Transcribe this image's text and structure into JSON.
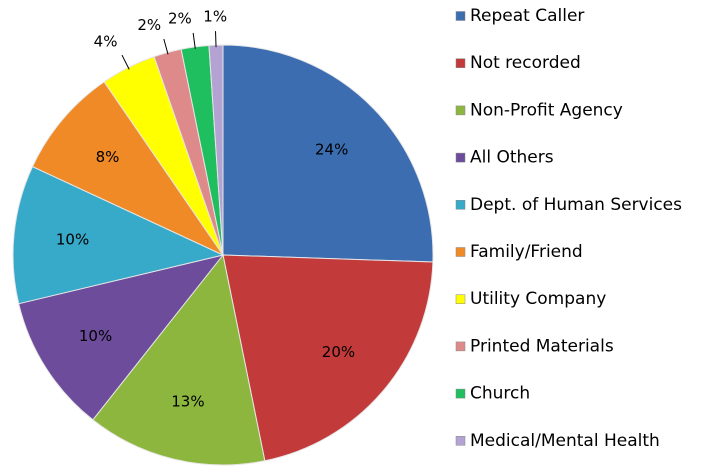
{
  "chart_data": {
    "type": "pie",
    "categories": [
      "Repeat Caller",
      "Not recorded",
      "Non-Profit Agency",
      "All Others",
      "Dept. of Human Services",
      "Family/Friend",
      "Utility Company",
      "Printed Materials",
      "Church",
      "Medical/Mental Health"
    ],
    "values": [
      24,
      20,
      13,
      10,
      10,
      8,
      4,
      2,
      2,
      1
    ],
    "value_labels": [
      "24%",
      "20%",
      "13%",
      "10%",
      "10%",
      "8%",
      "4%",
      "2%",
      "2%",
      "1%"
    ],
    "colors": [
      "#3b6db0",
      "#c33a3a",
      "#8db63f",
      "#6c4c9b",
      "#37a9c9",
      "#ef8a26",
      "#ffff00",
      "#df8a8a",
      "#1fbe5e",
      "#b3a2d2"
    ],
    "legend": "right"
  }
}
